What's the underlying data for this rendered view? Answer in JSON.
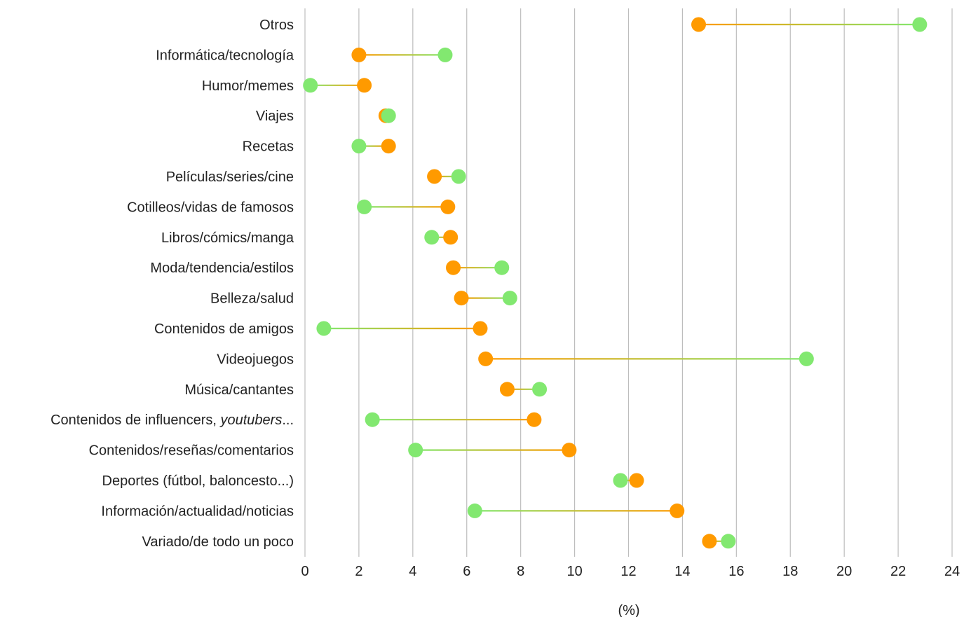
{
  "chart_data": {
    "type": "dumbbell",
    "xlabel": "(%)",
    "xlim": [
      0,
      24
    ],
    "x_ticks": [
      0,
      2,
      4,
      6,
      8,
      10,
      12,
      14,
      16,
      18,
      20,
      22,
      24
    ],
    "grid": "vertical",
    "colors": {
      "series_a": "#ff9a00",
      "series_b": "#82e870"
    },
    "categories": [
      "Otros",
      "Informática/tecnología",
      "Humor/memes",
      "Viajes",
      "Recetas",
      "Películas/series/cine",
      "Cotilleos/vidas de famosos",
      "Libros/cómics/manga",
      "Moda/tendencia/estilos",
      "Belleza/salud",
      "Contenidos de amigos",
      "Videojuegos",
      "Música/cantantes",
      "Contenidos de influencers, youtubers...",
      "Contenidos/reseñas/comentarios",
      "Deportes (fútbol, baloncesto...)",
      "Información/actualidad/noticias",
      "Variado/de todo un poco"
    ],
    "series": [
      {
        "values": [
          14.6,
          2.0,
          2.2,
          3.0,
          3.1,
          4.8,
          5.3,
          5.4,
          5.5,
          5.8,
          6.5,
          6.7,
          7.5,
          8.5,
          9.8,
          12.3,
          13.8,
          15.0
        ]
      },
      {
        "values": [
          22.8,
          5.2,
          0.2,
          3.1,
          2.0,
          5.7,
          2.2,
          4.7,
          7.3,
          7.6,
          0.7,
          18.6,
          8.7,
          2.5,
          4.1,
          11.7,
          6.3,
          15.7
        ]
      }
    ]
  }
}
